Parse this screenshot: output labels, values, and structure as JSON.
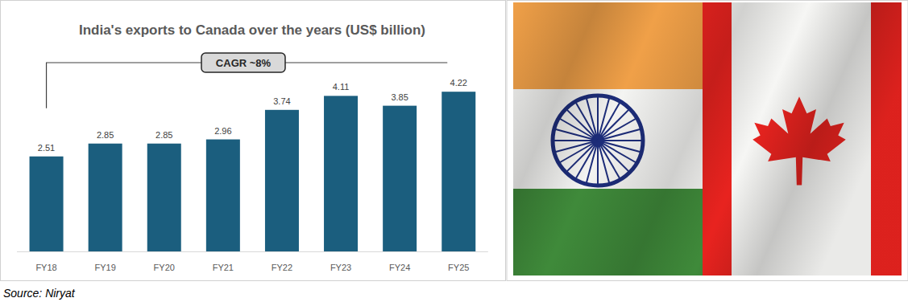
{
  "chart_data": {
    "type": "bar",
    "title": "India's exports to Canada over the years (US$ billion)",
    "categories": [
      "FY18",
      "FY19",
      "FY20",
      "FY21",
      "FY22",
      "FY23",
      "FY24",
      "FY25"
    ],
    "values": [
      2.51,
      2.85,
      2.85,
      2.96,
      3.74,
      4.11,
      3.85,
      4.22
    ],
    "color": "#1b5e7e",
    "ylim": [
      0,
      4.5
    ],
    "data_labels": true,
    "tick_labels": "x",
    "annotations": [
      "CAGR ~8%"
    ]
  },
  "source": "Source: Niryat"
}
